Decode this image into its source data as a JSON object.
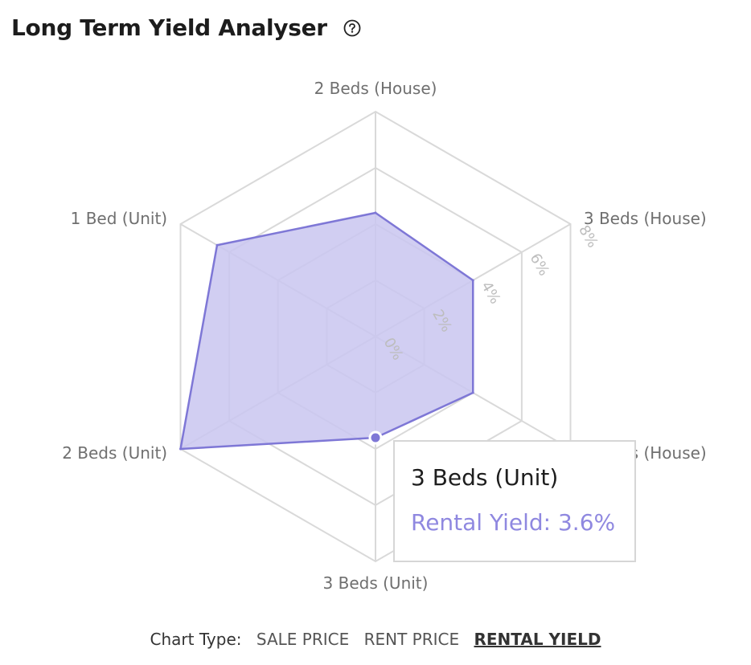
{
  "header": {
    "title": "Long Term Yield Analyser",
    "help_icon": "question-circle-icon"
  },
  "chart_data": {
    "type": "radar",
    "categories": [
      "2 Beds (House)",
      "3 Beds (House)",
      "3 Beds (House)",
      "3 Beds (Unit)",
      "2 Beds (Unit)",
      "1 Bed (Unit)"
    ],
    "series": [
      {
        "name": "Rental Yield",
        "values": [
          4.4,
          4.0,
          4.0,
          3.6,
          8.0,
          6.5
        ]
      }
    ],
    "r_ticks": [
      "0%",
      "2%",
      "4%",
      "6%",
      "8%"
    ],
    "r_range": [
      0,
      8
    ],
    "fill_color": "#c9c6f0",
    "line_color": "#7e77d6",
    "grid_color": "#d9d9d9"
  },
  "tooltip": {
    "title": "3 Beds (Unit)",
    "value": "Rental Yield: 3.6%"
  },
  "footer": {
    "label": "Chart Type:",
    "options": [
      "SALE PRICE",
      "RENT PRICE",
      "RENTAL YIELD"
    ],
    "active": "RENTAL YIELD"
  }
}
